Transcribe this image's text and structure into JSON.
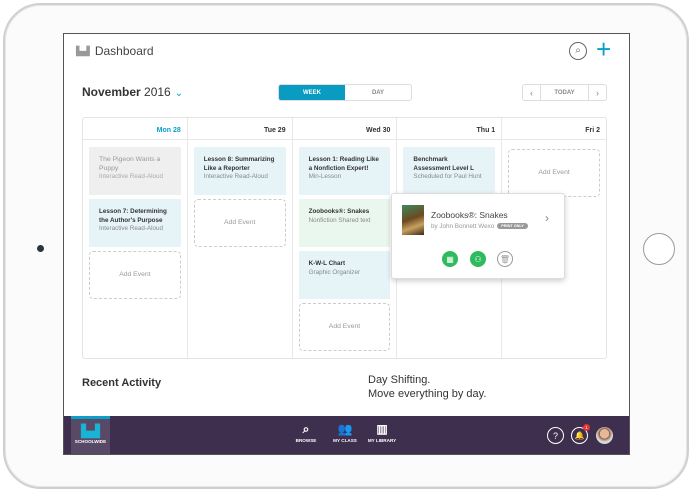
{
  "header": {
    "title": "Dashboard",
    "icons": [
      "dashboard-icon",
      "search-icon",
      "plus-icon"
    ]
  },
  "toolbar": {
    "month": "November",
    "year": "2016",
    "views": [
      "WEEK",
      "DAY"
    ],
    "active_view": "WEEK",
    "today": "TODAY"
  },
  "calendar": {
    "days": [
      {
        "label": "Mon 28",
        "today": true,
        "events": [
          {
            "title": "The Pigeon Wants a Puppy",
            "subtitle": "Interactive Read-Aloud",
            "style": "gray"
          },
          {
            "title": "Lesson 7: Determining the Author's Purpose",
            "subtitle": "Interactive Read-Aloud",
            "style": "blue"
          }
        ]
      },
      {
        "label": "Tue 29",
        "events": [
          {
            "title": "Lesson 8: Summarizing Like a Reporter",
            "subtitle": "Interactive Read-Aloud",
            "style": "blue"
          }
        ]
      },
      {
        "label": "Wed 30",
        "events": [
          {
            "title": "Lesson 1: Reading Like a Nonfiction Expert!",
            "subtitle": "Min-Lesson",
            "style": "blue"
          },
          {
            "title": "Zoobooks®: Snakes",
            "subtitle": "Nonfiction Shared text",
            "style": "green"
          },
          {
            "title": "K-W-L Chart",
            "subtitle": "Graphic Organizer",
            "style": "blue"
          }
        ]
      },
      {
        "label": "Thu 1",
        "events": [
          {
            "title": "Benchmark Assessment Level L",
            "subtitle": "Scheduled for Paul Hunt",
            "style": "blue"
          }
        ]
      },
      {
        "label": "Fri 2",
        "events": []
      }
    ],
    "add_event": "Add Event"
  },
  "popover": {
    "title": "Zoobooks®: Snakes",
    "author": "by John Bonnett Wexo",
    "badge": "PRINT ONLY",
    "actions": [
      "calendar-icon",
      "assign-icon",
      "trash-icon"
    ]
  },
  "recent_activity": "Recent Activity",
  "promo": {
    "line1": "Day Shifting.",
    "line2": "Move everything by day."
  },
  "bottom_nav": {
    "schoolwide": "SCHOOLWIDE",
    "browse": "BROWSE",
    "my_class": "MY CLASS",
    "my_library": "MY LIBRARY",
    "notifications": "1"
  },
  "colors": {
    "accent": "#0a9bc2",
    "nav_bg": "#3f2f4e",
    "action_green": "#2fba5f"
  }
}
